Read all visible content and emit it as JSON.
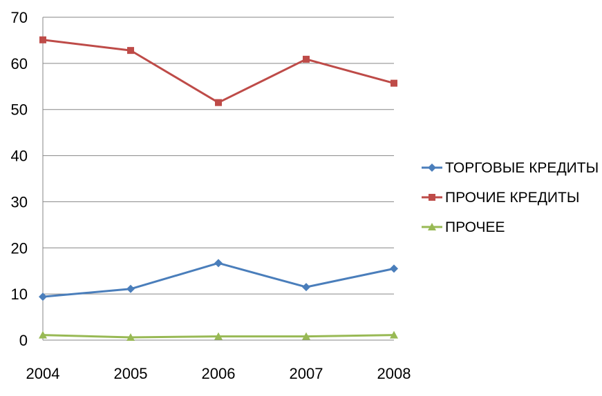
{
  "chart_data": {
    "type": "line",
    "x": [
      "2004",
      "2005",
      "2006",
      "2007",
      "2008"
    ],
    "ylim": [
      0,
      70
    ],
    "yticks": [
      0,
      10,
      20,
      30,
      40,
      50,
      60,
      70
    ],
    "grid": true,
    "legend_position": "right",
    "series": [
      {
        "name": "ТОРГОВЫЕ КРЕДИТЫ",
        "values": [
          9.4,
          11.1,
          16.7,
          11.5,
          15.5
        ],
        "color": "#4a7ebb",
        "marker": "diamond"
      },
      {
        "name": "ПРОЧИЕ КРЕДИТЫ",
        "values": [
          65.1,
          62.8,
          51.5,
          60.9,
          55.7
        ],
        "color": "#be4b48",
        "marker": "square"
      },
      {
        "name": "ПРОЧЕЕ",
        "values": [
          1.1,
          0.6,
          0.8,
          0.8,
          1.1
        ],
        "color": "#98b954",
        "marker": "triangle"
      }
    ]
  }
}
